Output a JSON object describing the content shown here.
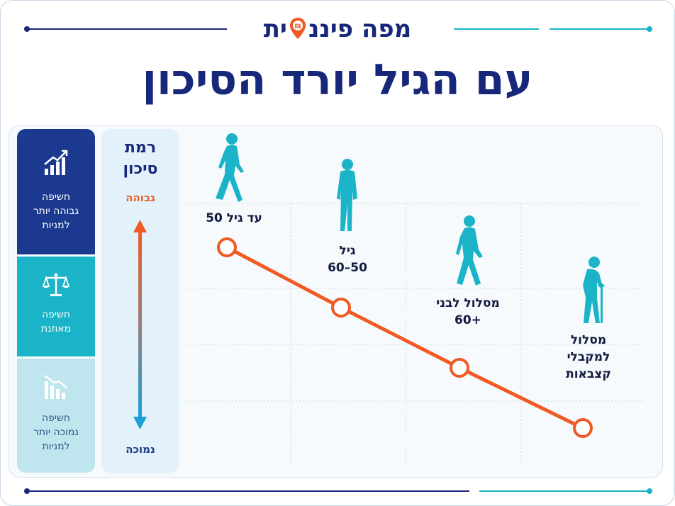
{
  "header": {
    "brand": "מפה פיננסית",
    "brand_before_pin": "מפה פיננ",
    "brand_after_pin": "ית",
    "title": "עם הגיל יורד הסיכון"
  },
  "risk_axis": {
    "title_line1": "רמת",
    "title_line2": "סיכון",
    "high": "גבוהה",
    "low": "נמוכה"
  },
  "categories": [
    {
      "line1": "חשיפה",
      "line2": "גבוהה יותר",
      "line3": "למניות",
      "icon": "bar-chart-up-icon"
    },
    {
      "line1": "חשיפה",
      "line2": "מאוזנת",
      "line3": "",
      "icon": "balance-scale-icon"
    },
    {
      "line1": "חשיפה",
      "line2": "נמוכה יותר",
      "line3": "למניות",
      "icon": "bar-chart-down-icon"
    }
  ],
  "stages": [
    {
      "line1": "עד גיל 50",
      "line2": "",
      "line3": "",
      "icon": "walking-person-icon",
      "risk_level": 4
    },
    {
      "line1": "גיל",
      "line2": "50–60",
      "line3": "",
      "icon": "standing-person-icon",
      "risk_level": 3
    },
    {
      "line1": "מסלול לבני",
      "line2": "+60",
      "line3": "",
      "icon": "older-person-walking-icon",
      "risk_level": 2
    },
    {
      "line1": "מסלול",
      "line2": "למקבלי",
      "line3": "קצבאות",
      "icon": "elderly-person-cane-icon",
      "risk_level": 1
    }
  ],
  "colors": {
    "navy": "#17277a",
    "orange": "#f05a23",
    "teal": "#1ab3c7",
    "light_teal": "#bfe6ee",
    "dark_blue": "#1b3a8f"
  }
}
